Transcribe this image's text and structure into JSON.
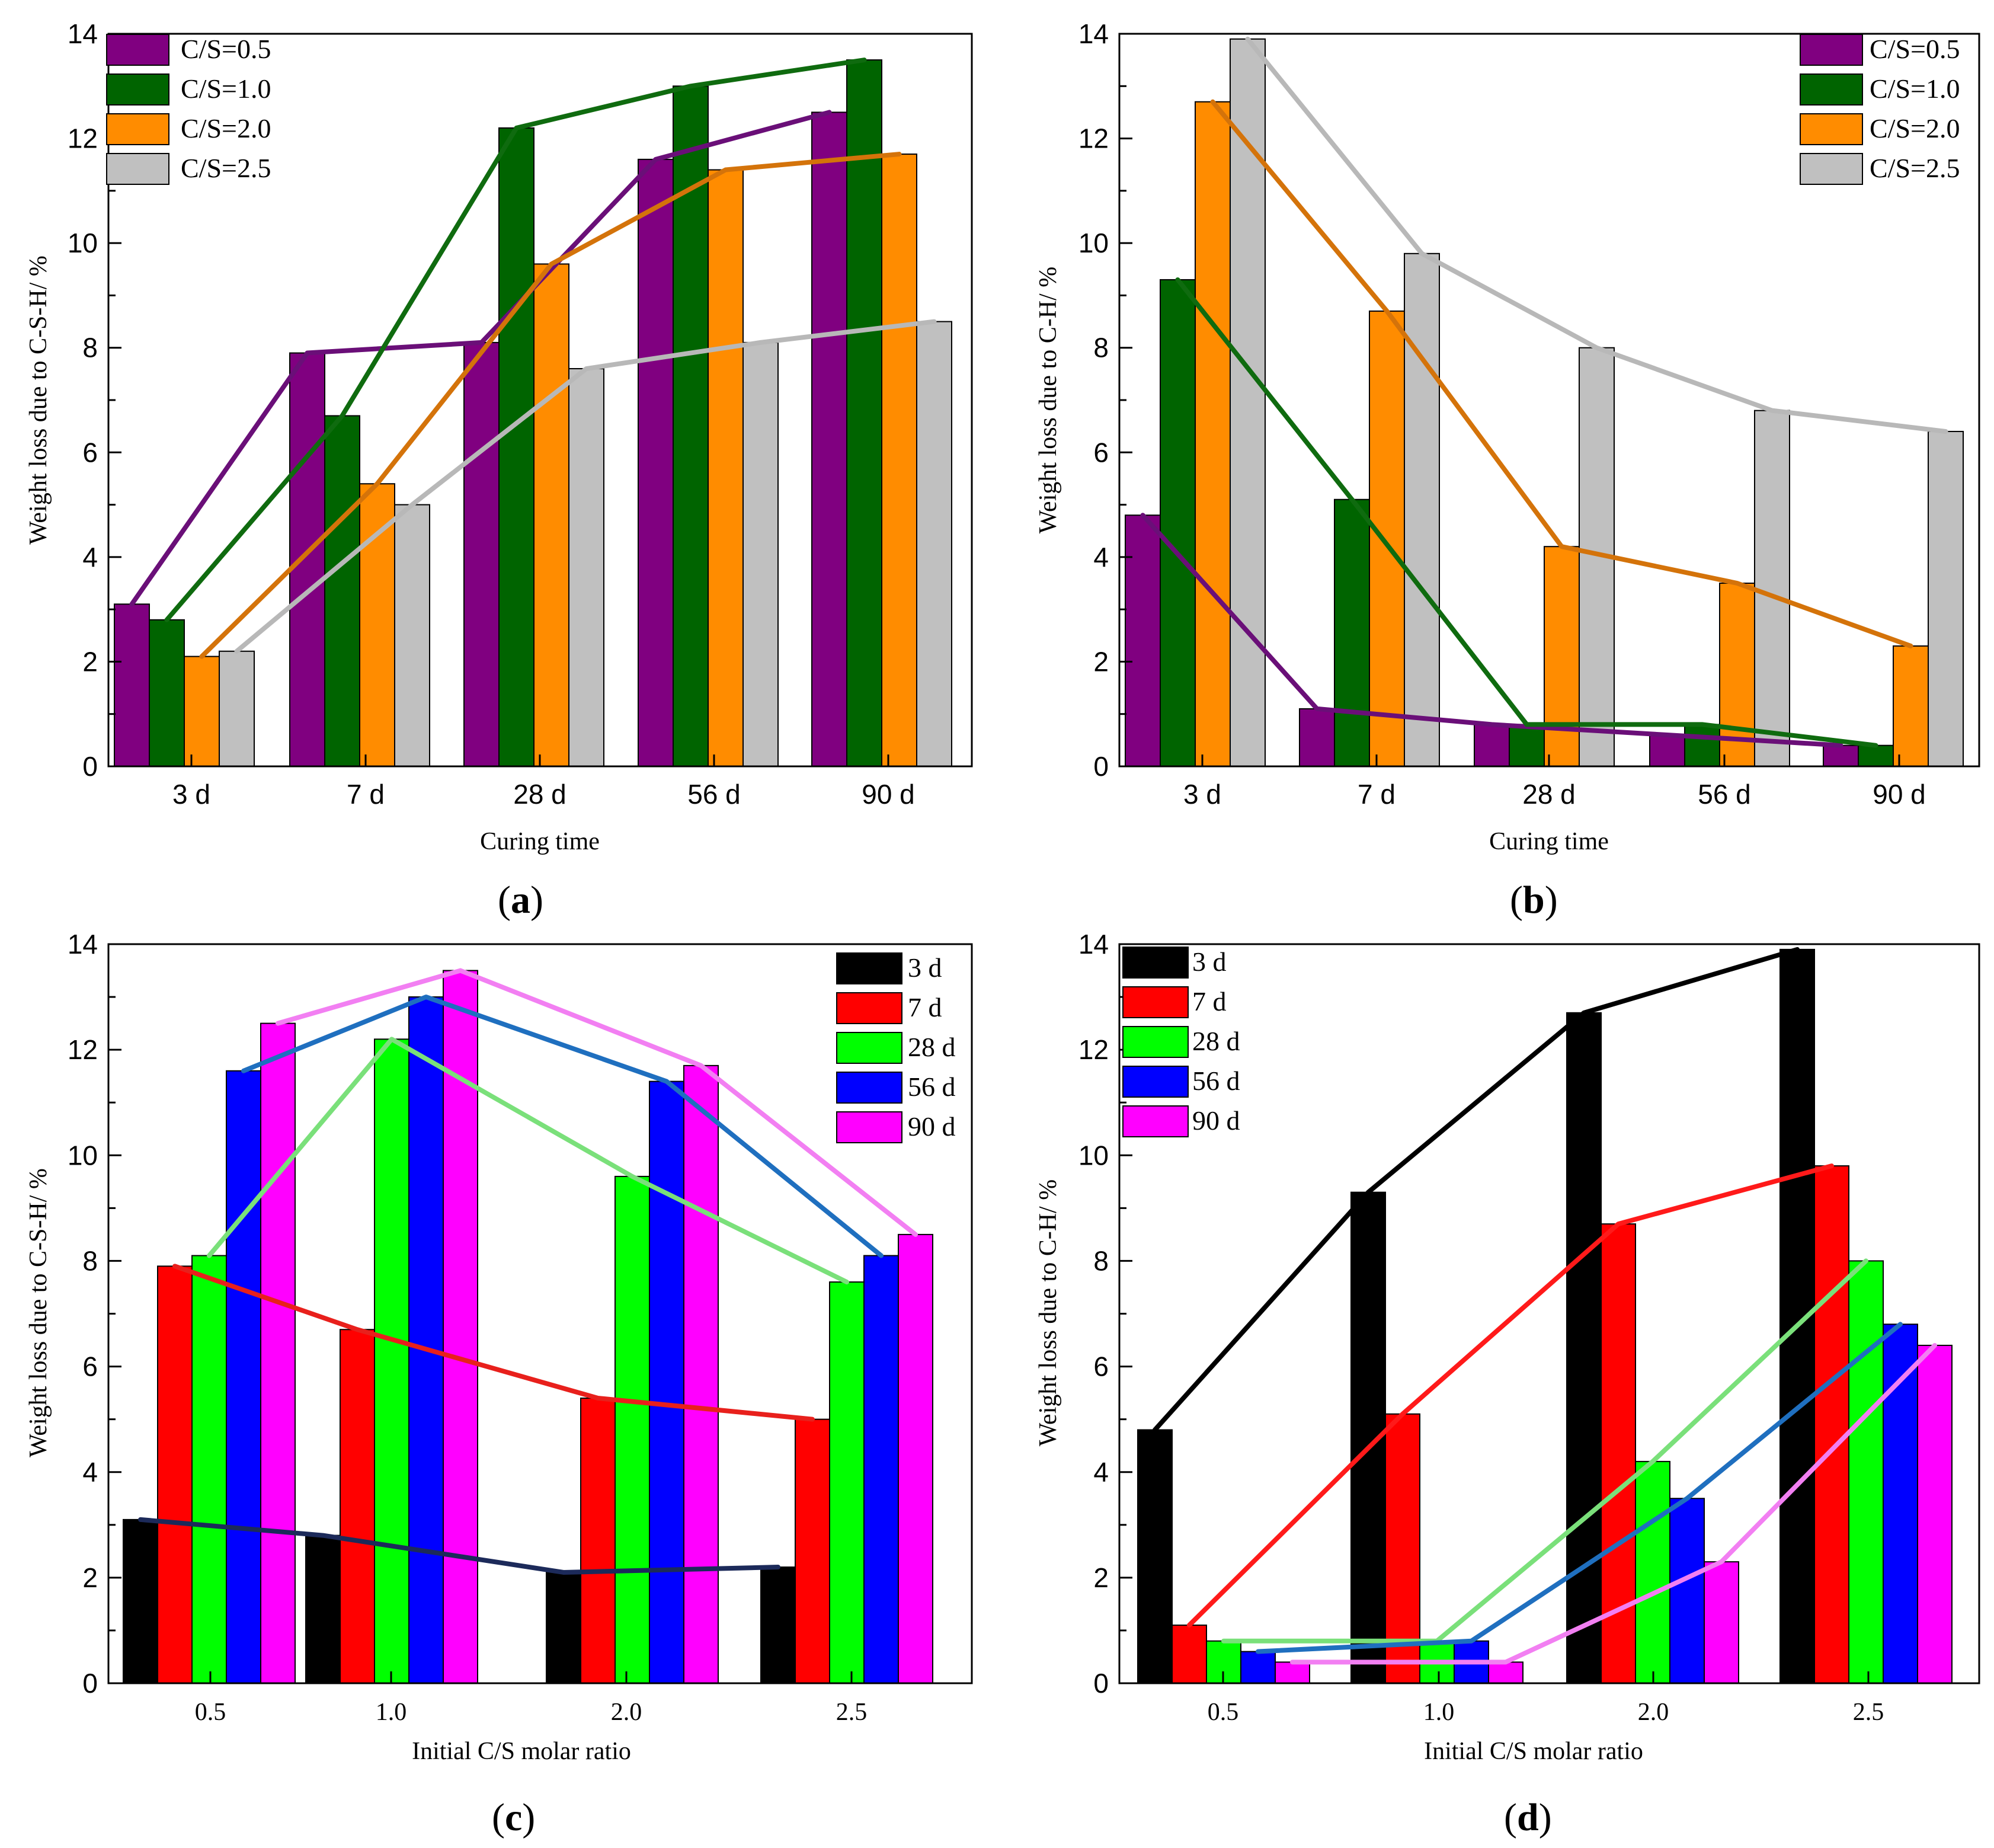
{
  "chart_data": [
    {
      "id": "a",
      "type": "bar",
      "panel_label": "a",
      "xlabel": "Curing time",
      "ylabel": "Weight loss due to C-S-H/ %",
      "ylim": [
        0,
        14
      ],
      "yticks": [
        "0",
        "2",
        "4",
        "6",
        "8",
        "10",
        "12",
        "14"
      ],
      "categories": [
        "3 d",
        "7 d",
        "28 d",
        "56 d",
        "90 d"
      ],
      "legend_position": "top-left",
      "trend_lines": true,
      "series": [
        {
          "name": "C/S=0.5",
          "color": "#800080",
          "line_color": "#6a0f78",
          "values": [
            3.1,
            7.9,
            8.1,
            11.6,
            12.5
          ]
        },
        {
          "name": "C/S=1.0",
          "color": "#006400",
          "line_color": "#0f6b0f",
          "values": [
            2.8,
            6.7,
            12.2,
            13.0,
            13.5
          ]
        },
        {
          "name": "C/S=2.0",
          "color": "#ff8c00",
          "line_color": "#d4730a",
          "values": [
            2.1,
            5.4,
            9.6,
            11.4,
            11.7
          ]
        },
        {
          "name": "C/S=2.5",
          "color": "#c0c0c0",
          "line_color": "#b8b8b8",
          "values": [
            2.2,
            5.0,
            7.6,
            8.1,
            8.5
          ]
        }
      ]
    },
    {
      "id": "b",
      "type": "bar",
      "panel_label": "b",
      "xlabel": "Curing time",
      "ylabel": "Weight loss due to C-H/ %",
      "ylim": [
        0,
        14
      ],
      "yticks": [
        "0",
        "2",
        "4",
        "6",
        "8",
        "10",
        "12",
        "14"
      ],
      "categories": [
        "3 d",
        "7 d",
        "28 d",
        "56 d",
        "90 d"
      ],
      "legend_position": "top-right",
      "trend_lines": true,
      "series": [
        {
          "name": "C/S=0.5",
          "color": "#800080",
          "line_color": "#6a0f78",
          "values": [
            4.8,
            1.1,
            0.8,
            0.6,
            0.4
          ]
        },
        {
          "name": "C/S=1.0",
          "color": "#006400",
          "line_color": "#0f6b0f",
          "values": [
            9.3,
            5.1,
            0.8,
            0.8,
            0.4
          ]
        },
        {
          "name": "C/S=2.0",
          "color": "#ff8c00",
          "line_color": "#d4730a",
          "values": [
            12.7,
            8.7,
            4.2,
            3.5,
            2.3
          ]
        },
        {
          "name": "C/S=2.5",
          "color": "#c0c0c0",
          "line_color": "#b8b8b8",
          "values": [
            13.9,
            9.8,
            8.0,
            6.8,
            6.4
          ]
        }
      ]
    },
    {
      "id": "c",
      "type": "bar",
      "panel_label": "c",
      "xlabel": "Initial C/S molar ratio",
      "ylabel": "Weight loss due to C-S-H/ %",
      "ylim": [
        0,
        14
      ],
      "yticks": [
        "0",
        "2",
        "4",
        "6",
        "8",
        "10",
        "12",
        "14"
      ],
      "categories": [
        "0.5",
        "1.0",
        "2.0",
        "2.5"
      ],
      "legend_position": "top-right",
      "trend_lines": true,
      "series": [
        {
          "name": "3 d",
          "color": "#000000",
          "line_color": "#1c2a5a",
          "values": [
            3.1,
            2.8,
            2.1,
            2.2
          ]
        },
        {
          "name": "7 d",
          "color": "#ff0000",
          "line_color": "#e8201c",
          "values": [
            7.9,
            6.7,
            5.4,
            5.0
          ]
        },
        {
          "name": "28 d",
          "color": "#00ff00",
          "line_color": "#7ae07a",
          "values": [
            8.1,
            12.2,
            9.6,
            7.6
          ]
        },
        {
          "name": "56 d",
          "color": "#0000ff",
          "line_color": "#1f6fbf",
          "values": [
            11.6,
            13.0,
            11.4,
            8.1
          ]
        },
        {
          "name": "90 d",
          "color": "#ff00ff",
          "line_color": "#f27ff2",
          "values": [
            12.5,
            13.5,
            11.7,
            8.5
          ]
        }
      ]
    },
    {
      "id": "d",
      "type": "bar",
      "panel_label": "d",
      "xlabel": "Initial C/S molar ratio",
      "ylabel": "Weight loss due to C-H/ %",
      "ylim": [
        0,
        14
      ],
      "yticks": [
        "0",
        "2",
        "4",
        "6",
        "8",
        "10",
        "12",
        "14"
      ],
      "categories": [
        "0.5",
        "1.0",
        "2.0",
        "2.5"
      ],
      "legend_position": "top-left",
      "trend_lines": true,
      "series": [
        {
          "name": "3 d",
          "color": "#000000",
          "line_color": "#000000",
          "values": [
            4.8,
            9.3,
            12.7,
            13.9
          ]
        },
        {
          "name": "7 d",
          "color": "#ff0000",
          "line_color": "#ff1a1a",
          "values": [
            1.1,
            5.1,
            8.7,
            9.8
          ]
        },
        {
          "name": "28 d",
          "color": "#00ff00",
          "line_color": "#7ae07a",
          "values": [
            0.8,
            0.8,
            4.2,
            8.0
          ]
        },
        {
          "name": "56 d",
          "color": "#0000ff",
          "line_color": "#1f6fbf",
          "values": [
            0.6,
            0.8,
            3.5,
            6.8
          ]
        },
        {
          "name": "90 d",
          "color": "#ff00ff",
          "line_color": "#f27ff2",
          "values": [
            0.4,
            0.4,
            2.3,
            6.4
          ]
        }
      ]
    }
  ]
}
